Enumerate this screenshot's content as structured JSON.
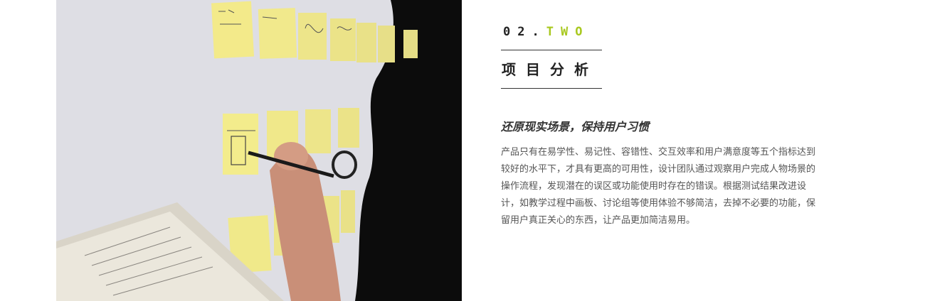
{
  "section": {
    "number": "02",
    "dot": ".",
    "word": "TWO",
    "title": "项目分析"
  },
  "content": {
    "subtitle": "还原现实场景，保持用户习惯",
    "paragraph": "产品只有在易学性、易记性、容错性、交互效率和用户满意度等五个指标达到较好的水平下，才具有更高的可用性，设计团队通过观察用户完成人物场景的操作流程，发现潜在的误区或功能使用时存在的错误。根据测试结果改进设计，如教学过程中画板、讨论组等使用体验不够简洁，去掉不必要的功能，保留用户真正关心的东西，让产品更加简洁易用。"
  },
  "colors": {
    "accent": "#a8c81e",
    "text_dark": "#222222",
    "text_body": "#555555"
  }
}
